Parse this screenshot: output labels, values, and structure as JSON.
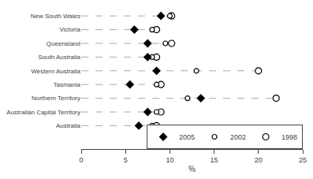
{
  "chart_data": {
    "type": "dot",
    "orientation": "horizontal",
    "categories": [
      "New South Wales",
      "Victoria",
      "Queensland",
      "South Australia",
      "Western Australia",
      "Tasmania",
      "Northern Territory",
      "Australian Capital Territory",
      "Australia"
    ],
    "series": [
      {
        "name": "2005",
        "color": "#000000",
        "marker": "diamond",
        "values": [
          9.0,
          6.0,
          7.5,
          7.5,
          8.5,
          5.5,
          13.5,
          7.5,
          6.5
        ]
      },
      {
        "name": "2002",
        "color": "#000000",
        "marker": "open circle",
        "values": [
          10.0,
          8.0,
          9.5,
          8.0,
          13.0,
          8.5,
          12.0,
          8.5,
          8.0
        ]
      },
      {
        "name": "1998",
        "color": "#000000",
        "marker": "open circle",
        "values": [
          10.2,
          8.5,
          10.2,
          8.5,
          20.0,
          9.0,
          22.0,
          9.0,
          8.5
        ]
      }
    ],
    "xlabel": "%",
    "xlim": [
      0,
      25
    ],
    "xticks": [
      0,
      5,
      10,
      15,
      20,
      25
    ],
    "grid": false,
    "legend": "lower right"
  }
}
